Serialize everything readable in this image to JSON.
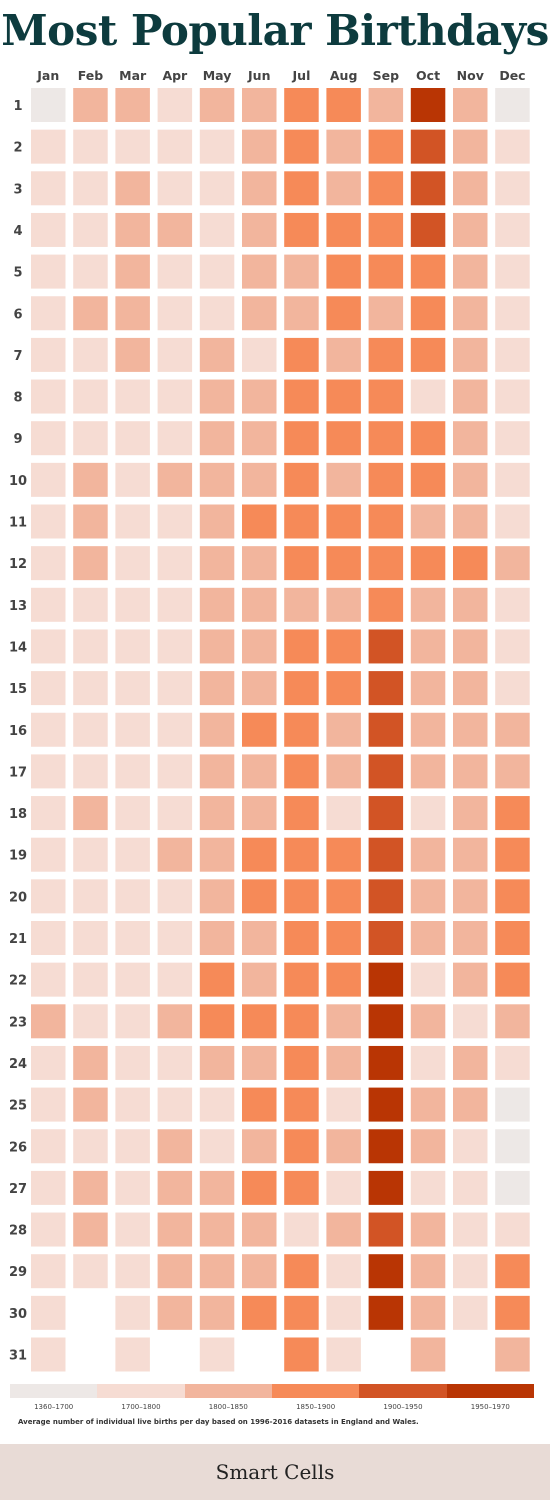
{
  "chart_data": {
    "type": "heatmap",
    "title": "Most Popular Birthdays",
    "months": [
      "Jan",
      "Feb",
      "Mar",
      "Apr",
      "May",
      "Jun",
      "Jul",
      "Aug",
      "Sep",
      "Oct",
      "Nov",
      "Dec"
    ],
    "days": [
      "1",
      "2",
      "3",
      "4",
      "5",
      "6",
      "7",
      "8",
      "9",
      "10",
      "11",
      "12",
      "13",
      "14",
      "15",
      "16",
      "17",
      "18",
      "19",
      "20",
      "21",
      "22",
      "23",
      "24",
      "25",
      "26",
      "27",
      "28",
      "29",
      "30",
      "31"
    ],
    "bins": [
      {
        "label": "1360–1700",
        "color": "#ede8e6"
      },
      {
        "label": "1700–1800",
        "color": "#f6dcd3"
      },
      {
        "label": "1800–1850",
        "color": "#f2b59d"
      },
      {
        "label": "1850–1900",
        "color": "#f68a58"
      },
      {
        "label": "1900–1950",
        "color": "#d25425"
      },
      {
        "label": "1950–1970",
        "color": "#b93504"
      }
    ],
    "values": [
      [
        0,
        1,
        1,
        1,
        1,
        1,
        1,
        1,
        1,
        1,
        1,
        1,
        1,
        1,
        1,
        1,
        1,
        1,
        1,
        1,
        1,
        1,
        2,
        1,
        1,
        1,
        1,
        1,
        1,
        1,
        1
      ],
      [
        2,
        1,
        1,
        1,
        1,
        2,
        1,
        1,
        1,
        2,
        2,
        2,
        1,
        1,
        1,
        1,
        1,
        2,
        1,
        1,
        1,
        1,
        1,
        2,
        2,
        1,
        2,
        2,
        1,
        null,
        null
      ],
      [
        2,
        1,
        2,
        2,
        2,
        2,
        2,
        1,
        1,
        1,
        1,
        1,
        1,
        1,
        1,
        1,
        1,
        1,
        1,
        1,
        1,
        1,
        1,
        1,
        1,
        1,
        1,
        1,
        1,
        1,
        1
      ],
      [
        1,
        1,
        1,
        2,
        1,
        1,
        1,
        1,
        1,
        2,
        1,
        1,
        1,
        1,
        1,
        1,
        1,
        1,
        2,
        1,
        1,
        1,
        2,
        1,
        1,
        2,
        2,
        2,
        2,
        2,
        null
      ],
      [
        2,
        1,
        1,
        1,
        1,
        1,
        2,
        2,
        2,
        2,
        2,
        2,
        2,
        2,
        2,
        2,
        2,
        2,
        2,
        2,
        2,
        3,
        3,
        2,
        1,
        1,
        2,
        2,
        2,
        2,
        1
      ],
      [
        2,
        2,
        2,
        2,
        2,
        2,
        1,
        2,
        2,
        2,
        3,
        2,
        2,
        2,
        2,
        3,
        2,
        2,
        3,
        3,
        2,
        2,
        3,
        2,
        3,
        2,
        3,
        2,
        2,
        3,
        null
      ],
      [
        3,
        3,
        3,
        3,
        2,
        2,
        3,
        3,
        3,
        3,
        3,
        3,
        2,
        3,
        3,
        3,
        3,
        3,
        3,
        3,
        3,
        3,
        3,
        3,
        3,
        3,
        3,
        1,
        3,
        3,
        3
      ],
      [
        3,
        2,
        2,
        3,
        3,
        3,
        2,
        3,
        3,
        2,
        3,
        3,
        2,
        3,
        3,
        2,
        2,
        1,
        3,
        3,
        3,
        3,
        2,
        2,
        1,
        2,
        1,
        2,
        1,
        1,
        1
      ],
      [
        2,
        3,
        3,
        3,
        3,
        2,
        3,
        3,
        3,
        3,
        3,
        3,
        3,
        4,
        4,
        4,
        4,
        4,
        4,
        4,
        4,
        5,
        5,
        5,
        5,
        5,
        5,
        4,
        5,
        5,
        null
      ],
      [
        5,
        4,
        4,
        4,
        3,
        3,
        3,
        1,
        3,
        3,
        2,
        3,
        2,
        2,
        2,
        2,
        2,
        1,
        2,
        2,
        2,
        1,
        2,
        1,
        2,
        2,
        1,
        2,
        2,
        2,
        2
      ],
      [
        2,
        2,
        2,
        2,
        2,
        2,
        2,
        2,
        2,
        2,
        2,
        3,
        2,
        2,
        2,
        2,
        2,
        2,
        2,
        2,
        2,
        2,
        1,
        2,
        2,
        1,
        1,
        1,
        1,
        1,
        null
      ],
      [
        0,
        1,
        1,
        1,
        1,
        1,
        1,
        1,
        1,
        1,
        1,
        2,
        1,
        1,
        1,
        2,
        2,
        3,
        3,
        3,
        3,
        3,
        2,
        1,
        0,
        0,
        0,
        1,
        3,
        3,
        2
      ]
    ]
  },
  "legend": {
    "note": "Average number of individual live births per day based on 1996-2016 datasets in England and Wales."
  },
  "footer": {
    "brand": "Smart Cells"
  }
}
